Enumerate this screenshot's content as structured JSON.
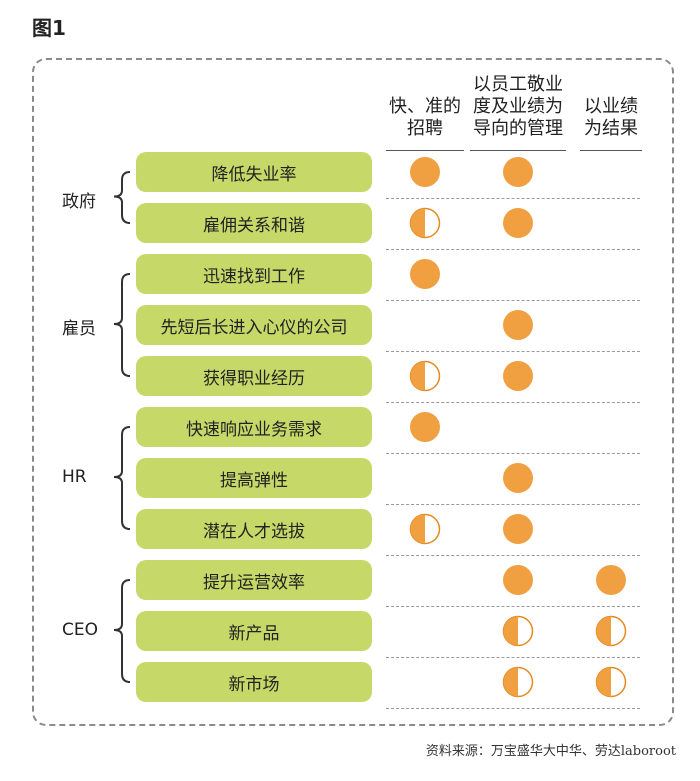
{
  "figure_label": "图1",
  "columns": [
    {
      "label": "快、准的\n招聘"
    },
    {
      "label": "以员工敬业\n度及业绩为\n导向的管理"
    },
    {
      "label": "以业绩\n为结果"
    }
  ],
  "groups": [
    {
      "label": "政府",
      "rows": [
        {
          "label": "降低失业率",
          "marks": [
            "full",
            "full",
            "none"
          ]
        },
        {
          "label": "雇佣关系和谐",
          "marks": [
            "half",
            "full",
            "none"
          ]
        }
      ]
    },
    {
      "label": "雇员",
      "rows": [
        {
          "label": "迅速找到工作",
          "marks": [
            "full",
            "none",
            "none"
          ]
        },
        {
          "label": "先短后长进入心仪的公司",
          "marks": [
            "none",
            "full",
            "none"
          ]
        },
        {
          "label": "获得职业经历",
          "marks": [
            "half",
            "full",
            "none"
          ]
        }
      ]
    },
    {
      "label": "HR",
      "rows": [
        {
          "label": "快速响应业务需求",
          "marks": [
            "full",
            "none",
            "none"
          ]
        },
        {
          "label": "提高弹性",
          "marks": [
            "none",
            "full",
            "none"
          ]
        },
        {
          "label": "潜在人才选拔",
          "marks": [
            "half",
            "full",
            "none"
          ]
        }
      ]
    },
    {
      "label": "CEO",
      "rows": [
        {
          "label": "提升运营效率",
          "marks": [
            "none",
            "full",
            "full"
          ]
        },
        {
          "label": "新产品",
          "marks": [
            "none",
            "half",
            "half"
          ]
        },
        {
          "label": "新市场",
          "marks": [
            "none",
            "half",
            "half"
          ]
        }
      ]
    }
  ],
  "source": "资料来源：万宝盛华大中华、劳达laboroot",
  "colors": {
    "pill": "#c6d868",
    "dot": "#f0a040",
    "dot_outline": "#e58a1f"
  }
}
